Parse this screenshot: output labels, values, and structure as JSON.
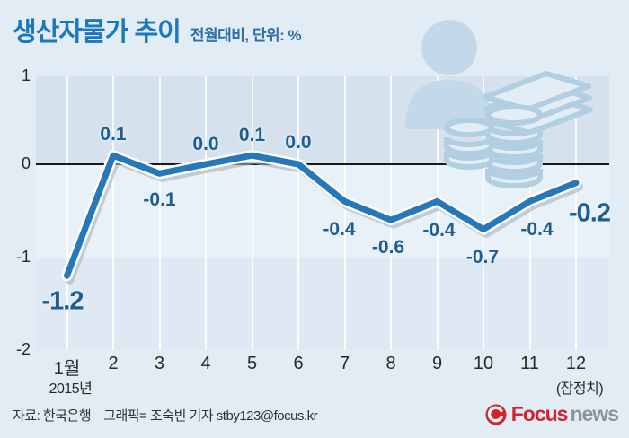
{
  "header": {
    "title": "생산자물가 추이",
    "subtitle": "전월대비, 단위: %"
  },
  "chart_data": {
    "type": "line",
    "x": [
      "1월",
      "2",
      "3",
      "4",
      "5",
      "6",
      "7",
      "8",
      "9",
      "10",
      "11",
      "12"
    ],
    "x_first_sub": "2015년",
    "x_last_sub": "(잠정치)",
    "values": [
      -1.2,
      0.1,
      -0.1,
      0.0,
      0.1,
      0.0,
      -0.4,
      -0.6,
      -0.4,
      -0.7,
      -0.4,
      -0.2
    ],
    "labels": [
      "-1.2",
      "0.1",
      "-0.1",
      "0.0",
      "0.1",
      "0.0",
      "-0.4",
      "-0.6",
      "-0.4",
      "-0.7",
      "-0.4",
      "-0.2"
    ],
    "yticks": [
      1,
      0,
      -1,
      -2
    ],
    "ylim": [
      -2,
      1
    ],
    "title": "생산자물가 추이",
    "xlabel": "",
    "ylabel": "",
    "grid": "vertical-white",
    "legend": "none"
  },
  "footer": {
    "source": "자료: 한국은행",
    "credit": "그래픽= 조숙빈 기자 stby123@focus.kr",
    "logo_focus": "Focus",
    "logo_news": "news"
  },
  "colors": {
    "title": "#1c78bc",
    "subtitle": "#2e6da6",
    "line": "#2678b8",
    "value_label": "#1d5e92",
    "logo_red": "#d5232e",
    "logo_grey": "#8d939b"
  }
}
